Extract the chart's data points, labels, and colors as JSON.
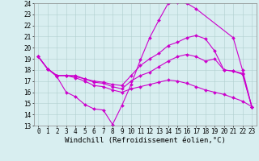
{
  "title": "",
  "xlabel": "Windchill (Refroidissement éolien,°C)",
  "ylabel": "",
  "xlim": [
    -0.5,
    23.5
  ],
  "ylim": [
    13,
    24
  ],
  "xticks": [
    0,
    1,
    2,
    3,
    4,
    5,
    6,
    7,
    8,
    9,
    10,
    11,
    12,
    13,
    14,
    15,
    16,
    17,
    18,
    19,
    20,
    21,
    22,
    23
  ],
  "yticks": [
    13,
    14,
    15,
    16,
    17,
    18,
    19,
    20,
    21,
    22,
    23,
    24
  ],
  "bg_color": "#d8eef0",
  "line_color": "#cc00cc",
  "grid_color": "#b0cece",
  "lines": [
    {
      "x": [
        0,
        1,
        2,
        3,
        4,
        5,
        6,
        7,
        8,
        9,
        10,
        11,
        12,
        13,
        14,
        15,
        16,
        17,
        21,
        22,
        23
      ],
      "y": [
        19.2,
        18.1,
        17.4,
        16.0,
        15.6,
        14.9,
        14.5,
        14.4,
        13.1,
        14.8,
        16.7,
        18.9,
        20.9,
        22.5,
        24.0,
        24.1,
        24.0,
        23.5,
        20.9,
        18.0,
        14.7
      ]
    },
    {
      "x": [
        0,
        1,
        2,
        3,
        4,
        5,
        6,
        7,
        8,
        9,
        10,
        11,
        12,
        13,
        14,
        15,
        16,
        17,
        18,
        19,
        20,
        21,
        22,
        23
      ],
      "y": [
        19.2,
        18.1,
        17.5,
        17.5,
        17.5,
        17.2,
        17.0,
        16.9,
        16.7,
        16.6,
        17.5,
        18.4,
        19.0,
        19.5,
        20.2,
        20.5,
        20.9,
        21.1,
        20.8,
        19.7,
        18.0,
        17.9,
        17.7,
        14.7
      ]
    },
    {
      "x": [
        0,
        1,
        2,
        3,
        4,
        5,
        6,
        7,
        8,
        9,
        10,
        11,
        12,
        13,
        14,
        15,
        16,
        17,
        18,
        19,
        20,
        21,
        22,
        23
      ],
      "y": [
        19.2,
        18.1,
        17.5,
        17.5,
        17.4,
        17.2,
        16.9,
        16.8,
        16.5,
        16.3,
        17.0,
        17.5,
        17.8,
        18.3,
        18.8,
        19.2,
        19.4,
        19.2,
        18.8,
        19.0,
        18.0,
        17.9,
        17.6,
        14.7
      ]
    },
    {
      "x": [
        0,
        1,
        2,
        3,
        4,
        5,
        6,
        7,
        8,
        9,
        10,
        11,
        12,
        13,
        14,
        15,
        16,
        17,
        18,
        19,
        20,
        21,
        22,
        23
      ],
      "y": [
        19.2,
        18.1,
        17.5,
        17.5,
        17.3,
        17.0,
        16.6,
        16.5,
        16.2,
        16.0,
        16.3,
        16.5,
        16.7,
        16.9,
        17.1,
        17.0,
        16.8,
        16.5,
        16.2,
        16.0,
        15.8,
        15.5,
        15.2,
        14.7
      ]
    }
  ],
  "marker": "D",
  "markersize": 2.0,
  "linewidth": 0.8,
  "xlabel_fontsize": 6.5,
  "tick_fontsize": 5.5
}
